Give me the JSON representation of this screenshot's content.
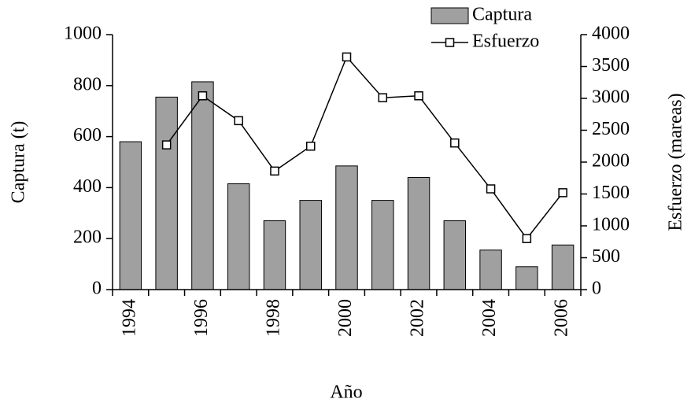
{
  "chart_data": {
    "type": "bar-line",
    "categories": [
      "1994",
      null,
      "1996",
      null,
      "1998",
      null,
      "2000",
      null,
      "2002",
      null,
      "2004",
      null,
      "2006"
    ],
    "xlabel": "Año",
    "ylabel": "Captura (t)",
    "y2label": "Esfuerzo (mareas)",
    "ylim": [
      0,
      1000
    ],
    "yticks": [
      0,
      200,
      400,
      600,
      800,
      1000
    ],
    "y2lim": [
      0,
      4000
    ],
    "y2ticks": [
      0,
      500,
      1000,
      1500,
      2000,
      2500,
      3000,
      3500,
      4000
    ],
    "series": [
      {
        "name": "Captura",
        "type": "bar",
        "color": "#a0a0a0",
        "values": [
          580,
          755,
          815,
          415,
          270,
          350,
          485,
          350,
          440,
          270,
          155,
          90,
          175
        ]
      },
      {
        "name": "Esfuerzo",
        "type": "line",
        "axis": "y2",
        "color": "#000000",
        "values": [
          null,
          2270,
          3040,
          2650,
          1860,
          2250,
          3650,
          3010,
          3040,
          2300,
          1580,
          800,
          1520
        ]
      }
    ]
  }
}
